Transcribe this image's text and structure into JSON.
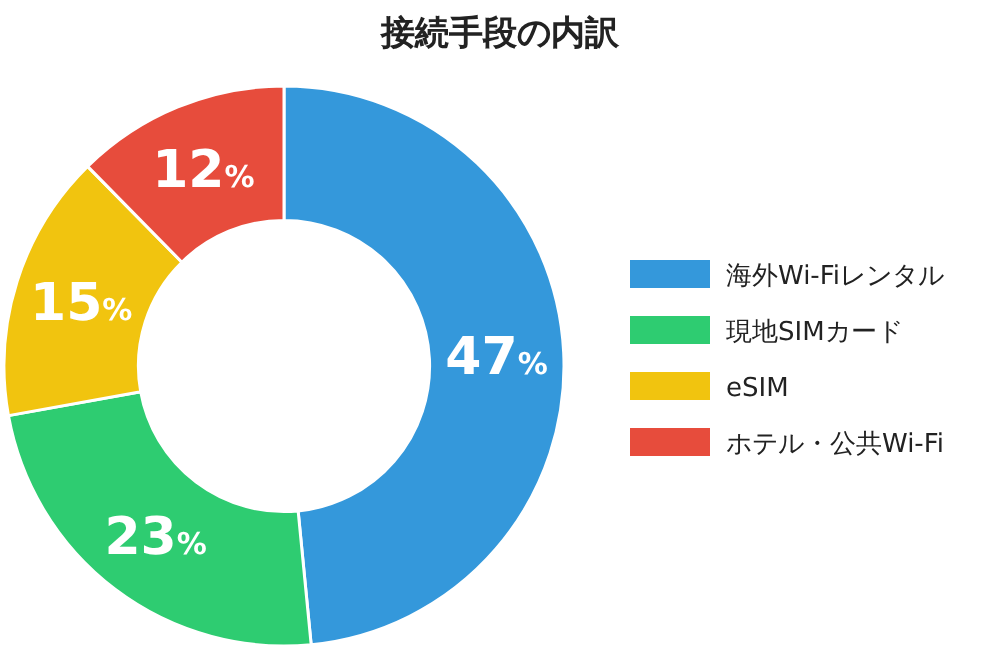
{
  "chart_data": {
    "type": "donut",
    "title": "接続手段の内訳",
    "categories": [
      "海外Wi-Fiレンタル",
      "現地SIMカード",
      "eSIM",
      "ホテル・公共Wi-Fi"
    ],
    "values": [
      47,
      23,
      15,
      12
    ],
    "colors": [
      "#3498db",
      "#2ecc71",
      "#f1c40f",
      "#e74c3c"
    ],
    "value_labels": [
      "47%",
      "23%",
      "15%",
      "12%"
    ],
    "legend": "right"
  }
}
